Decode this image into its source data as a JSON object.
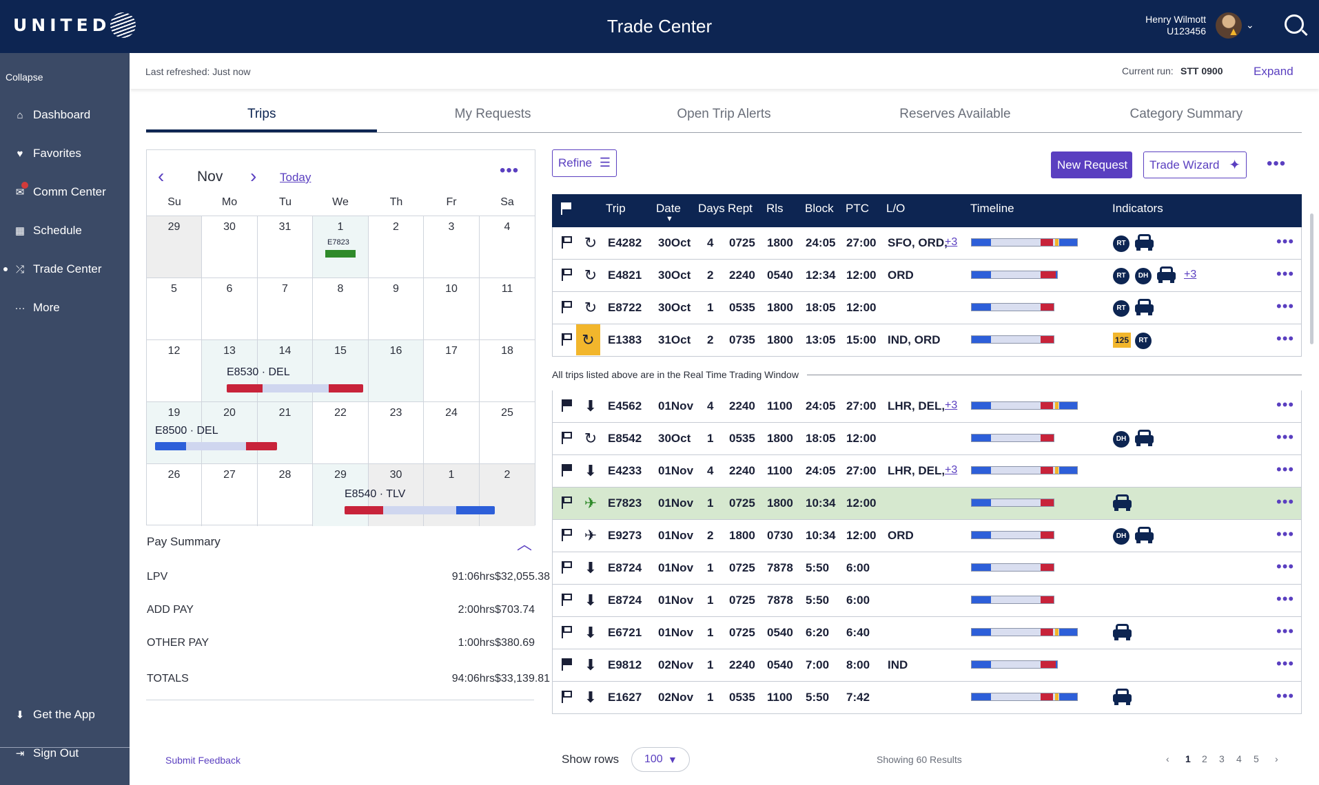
{
  "header": {
    "brand": "UNITED",
    "title": "Trade Center",
    "user_name": "Henry Wilmott",
    "user_id": "U123456"
  },
  "sidebar": {
    "collapse": "Collapse",
    "items": [
      {
        "label": "Dashboard",
        "icon": "home-icon"
      },
      {
        "label": "Favorites",
        "icon": "heart-icon"
      },
      {
        "label": "Comm Center",
        "icon": "mail-icon"
      },
      {
        "label": "Schedule",
        "icon": "calendar-icon"
      },
      {
        "label": "Trade Center",
        "icon": "shuffle-icon"
      },
      {
        "label": "More",
        "icon": "more-icon"
      }
    ],
    "get_app": "Get the App",
    "sign_out": "Sign Out"
  },
  "subbar": {
    "refreshed": "Last refreshed: Just now",
    "run_label": "Current run:",
    "run_value": "STT 0900",
    "expand": "Expand"
  },
  "tabs": [
    "Trips",
    "My Requests",
    "Open Trip Alerts",
    "Reserves Available",
    "Category Summary"
  ],
  "calendar": {
    "month": "Nov",
    "today": "Today",
    "days": [
      "Su",
      "Mo",
      "Tu",
      "We",
      "Th",
      "Fr",
      "Sa"
    ],
    "weeks": [
      [
        "29",
        "30",
        "31",
        "1",
        "2",
        "3",
        "4"
      ],
      [
        "5",
        "6",
        "7",
        "8",
        "9",
        "10",
        "11"
      ],
      [
        "12",
        "13",
        "14",
        "15",
        "16",
        "17",
        "18"
      ],
      [
        "19",
        "20",
        "21",
        "22",
        "23",
        "24",
        "25"
      ],
      [
        "26",
        "27",
        "28",
        "29",
        "30",
        "1",
        "2"
      ]
    ],
    "events": {
      "e1": "E7823",
      "e2": "E8530 · DEL",
      "e3": "E8500 · DEL",
      "e4": "E8540 · TLV"
    }
  },
  "pay_summary": {
    "title": "Pay Summary",
    "rows": [
      {
        "label": "LPV",
        "hours": "91:06",
        "unit": "hrs",
        "amount": "$32,055.38"
      },
      {
        "label": "ADD PAY",
        "hours": "2:00",
        "unit": "hrs",
        "amount": "$703.74"
      },
      {
        "label": "OTHER PAY",
        "hours": "1:00",
        "unit": "hrs",
        "amount": "$380.69"
      },
      {
        "label": "TOTALS",
        "hours": "94:06",
        "unit": "hrs",
        "amount": "$33,139.81"
      }
    ]
  },
  "toolbar": {
    "refine": "Refine",
    "new_request": "New Request",
    "trade_wizard": "Trade Wizard"
  },
  "table": {
    "headers": {
      "trip": "Trip",
      "date": "Date",
      "days": "Days",
      "rept": "Rept",
      "rls": "Rls",
      "block": "Block",
      "ptc": "PTC",
      "lo": "L/O",
      "timeline": "Timeline",
      "indicators": "Indicators"
    },
    "rttw_note": "All trips listed above are in the Real Time Trading Window",
    "rows": [
      {
        "trip": "E4282",
        "date": "30Oct",
        "days": "4",
        "rept": "0725",
        "rls": "1800",
        "block": "24:05",
        "ptc": "27:00",
        "lo": "SFO, ORD,",
        "lo_more": "+3",
        "extra": ""
      },
      {
        "trip": "E4821",
        "date": "30Oct",
        "days": "2",
        "rept": "2240",
        "rls": "0540",
        "block": "12:34",
        "ptc": "12:00",
        "lo": "ORD",
        "lo_more": "",
        "extra": "+3"
      },
      {
        "trip": "E8722",
        "date": "30Oct",
        "days": "1",
        "rept": "0535",
        "rls": "1800",
        "block": "18:05",
        "ptc": "12:00",
        "lo": "",
        "lo_more": "",
        "extra": ""
      },
      {
        "trip": "E1383",
        "date": "31Oct",
        "days": "2",
        "rept": "0735",
        "rls": "1800",
        "block": "13:05",
        "ptc": "15:00",
        "lo": "IND, ORD",
        "lo_more": "",
        "extra": ""
      },
      {
        "trip": "E4562",
        "date": "01Nov",
        "days": "4",
        "rept": "2240",
        "rls": "1100",
        "block": "24:05",
        "ptc": "27:00",
        "lo": "LHR, DEL,",
        "lo_more": "+3",
        "extra": ""
      },
      {
        "trip": "E8542",
        "date": "30Oct",
        "days": "1",
        "rept": "0535",
        "rls": "1800",
        "block": "18:05",
        "ptc": "12:00",
        "lo": "",
        "lo_more": "",
        "extra": ""
      },
      {
        "trip": "E4233",
        "date": "01Nov",
        "days": "4",
        "rept": "2240",
        "rls": "1100",
        "block": "24:05",
        "ptc": "27:00",
        "lo": "LHR, DEL,",
        "lo_more": "+3",
        "extra": ""
      },
      {
        "trip": "E7823",
        "date": "01Nov",
        "days": "1",
        "rept": "0725",
        "rls": "1800",
        "block": "10:34",
        "ptc": "12:00",
        "lo": "",
        "lo_more": "",
        "extra": ""
      },
      {
        "trip": "E9273",
        "date": "01Nov",
        "days": "2",
        "rept": "1800",
        "rls": "0730",
        "block": "10:34",
        "ptc": "12:00",
        "lo": "ORD",
        "lo_more": "",
        "extra": ""
      },
      {
        "trip": "E8724",
        "date": "01Nov",
        "days": "1",
        "rept": "0725",
        "rls": "7878",
        "block": "5:50",
        "ptc": "6:00",
        "lo": "",
        "lo_more": "",
        "extra": ""
      },
      {
        "trip": "E8724",
        "date": "01Nov",
        "days": "1",
        "rept": "0725",
        "rls": "7878",
        "block": "5:50",
        "ptc": "6:00",
        "lo": "",
        "lo_more": "",
        "extra": ""
      },
      {
        "trip": "E6721",
        "date": "01Nov",
        "days": "1",
        "rept": "0725",
        "rls": "0540",
        "block": "6:20",
        "ptc": "6:40",
        "lo": "",
        "lo_more": "",
        "extra": ""
      },
      {
        "trip": "E9812",
        "date": "02Nov",
        "days": "1",
        "rept": "2240",
        "rls": "0540",
        "block": "7:00",
        "ptc": "8:00",
        "lo": "IND",
        "lo_more": "",
        "extra": ""
      },
      {
        "trip": "E1627",
        "date": "02Nov",
        "days": "1",
        "rept": "0535",
        "rls": "1100",
        "block": "5:50",
        "ptc": "7:42",
        "lo": "",
        "lo_more": "",
        "extra": ""
      }
    ],
    "indicator_rt": "RT",
    "indicator_dh": "DH",
    "indicator_125": "125"
  },
  "footer": {
    "feedback": "Submit Feedback",
    "show_rows": "Show rows",
    "rows_value": "100",
    "results": "Showing 60 Results",
    "pages": [
      "1",
      "2",
      "3",
      "4",
      "5"
    ]
  }
}
